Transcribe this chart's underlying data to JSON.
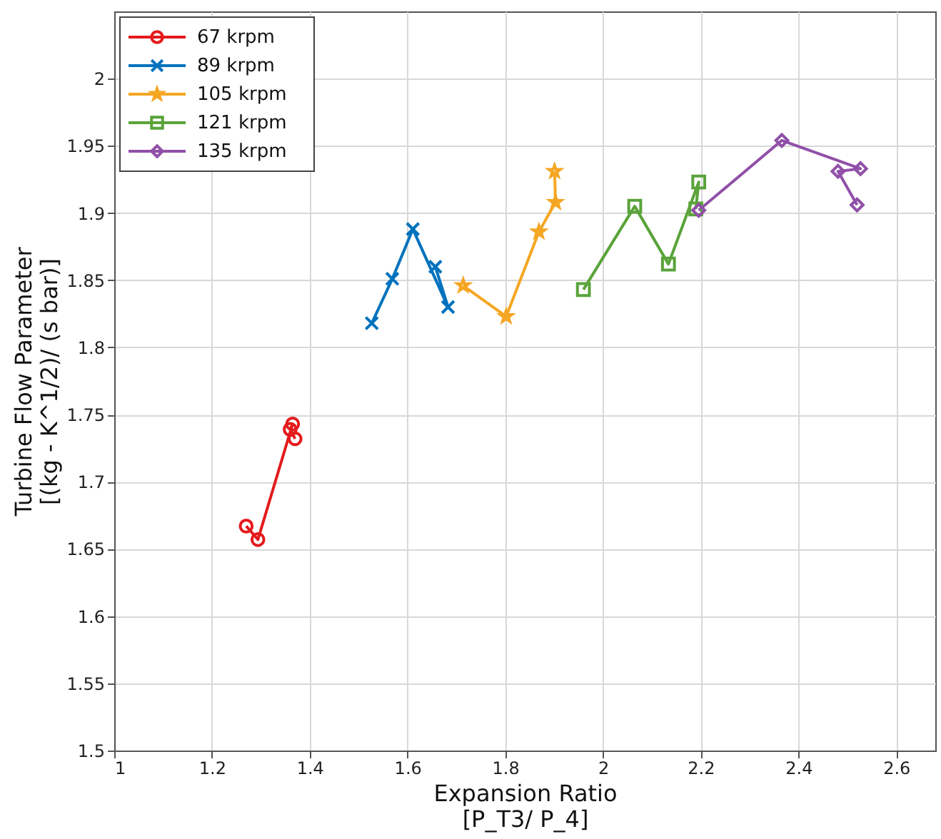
{
  "chart_data": {
    "type": "line",
    "xlabel": "Expansion Ratio\n[P_T3/ P_4]",
    "ylabel": "Turbine Flow Parameter\n[(kg - K^1/2)/ (s bar)]",
    "xlim": [
      1,
      2.68
    ],
    "xticks": [
      1,
      1.2,
      1.4,
      1.6,
      1.8,
      2,
      2.2,
      2.4,
      2.6
    ],
    "ylim": [
      1.5,
      2.05
    ],
    "yticks": [
      1.5,
      1.55,
      1.6,
      1.65,
      1.7,
      1.75,
      1.8,
      1.85,
      1.9,
      1.95,
      2
    ],
    "grid": true,
    "legend": "top left",
    "line_style": "solid",
    "series": [
      {
        "name": "67 krpm",
        "color": "#e41a1c",
        "marker": "circle",
        "x": [
          1.27,
          1.294,
          1.365,
          1.36,
          1.37
        ],
        "values": [
          1.667,
          1.657,
          1.743,
          1.739,
          1.732
        ]
      },
      {
        "name": "89 krpm",
        "color": "#0072bd",
        "marker": "cross",
        "x": [
          1.527,
          1.569,
          1.611,
          1.683,
          1.657
        ],
        "values": [
          1.818,
          1.851,
          1.888,
          1.83,
          1.86
        ]
      },
      {
        "name": "105 krpm",
        "color": "#f5a623",
        "marker": "star",
        "x": [
          1.714,
          1.802,
          1.869,
          1.903,
          1.901
        ],
        "values": [
          1.846,
          1.823,
          1.886,
          1.908,
          1.931
        ]
      },
      {
        "name": "121 krpm",
        "color": "#5aa33a",
        "marker": "square",
        "x": [
          1.96,
          2.065,
          2.134,
          2.196,
          2.19
        ],
        "values": [
          1.843,
          1.905,
          1.862,
          1.923,
          1.903
        ]
      },
      {
        "name": "135 krpm",
        "color": "#9050a8",
        "marker": "diamond",
        "x": [
          2.196,
          2.366,
          2.527,
          2.481,
          2.52
        ],
        "values": [
          1.902,
          1.954,
          1.933,
          1.931,
          1.906
        ]
      }
    ]
  }
}
